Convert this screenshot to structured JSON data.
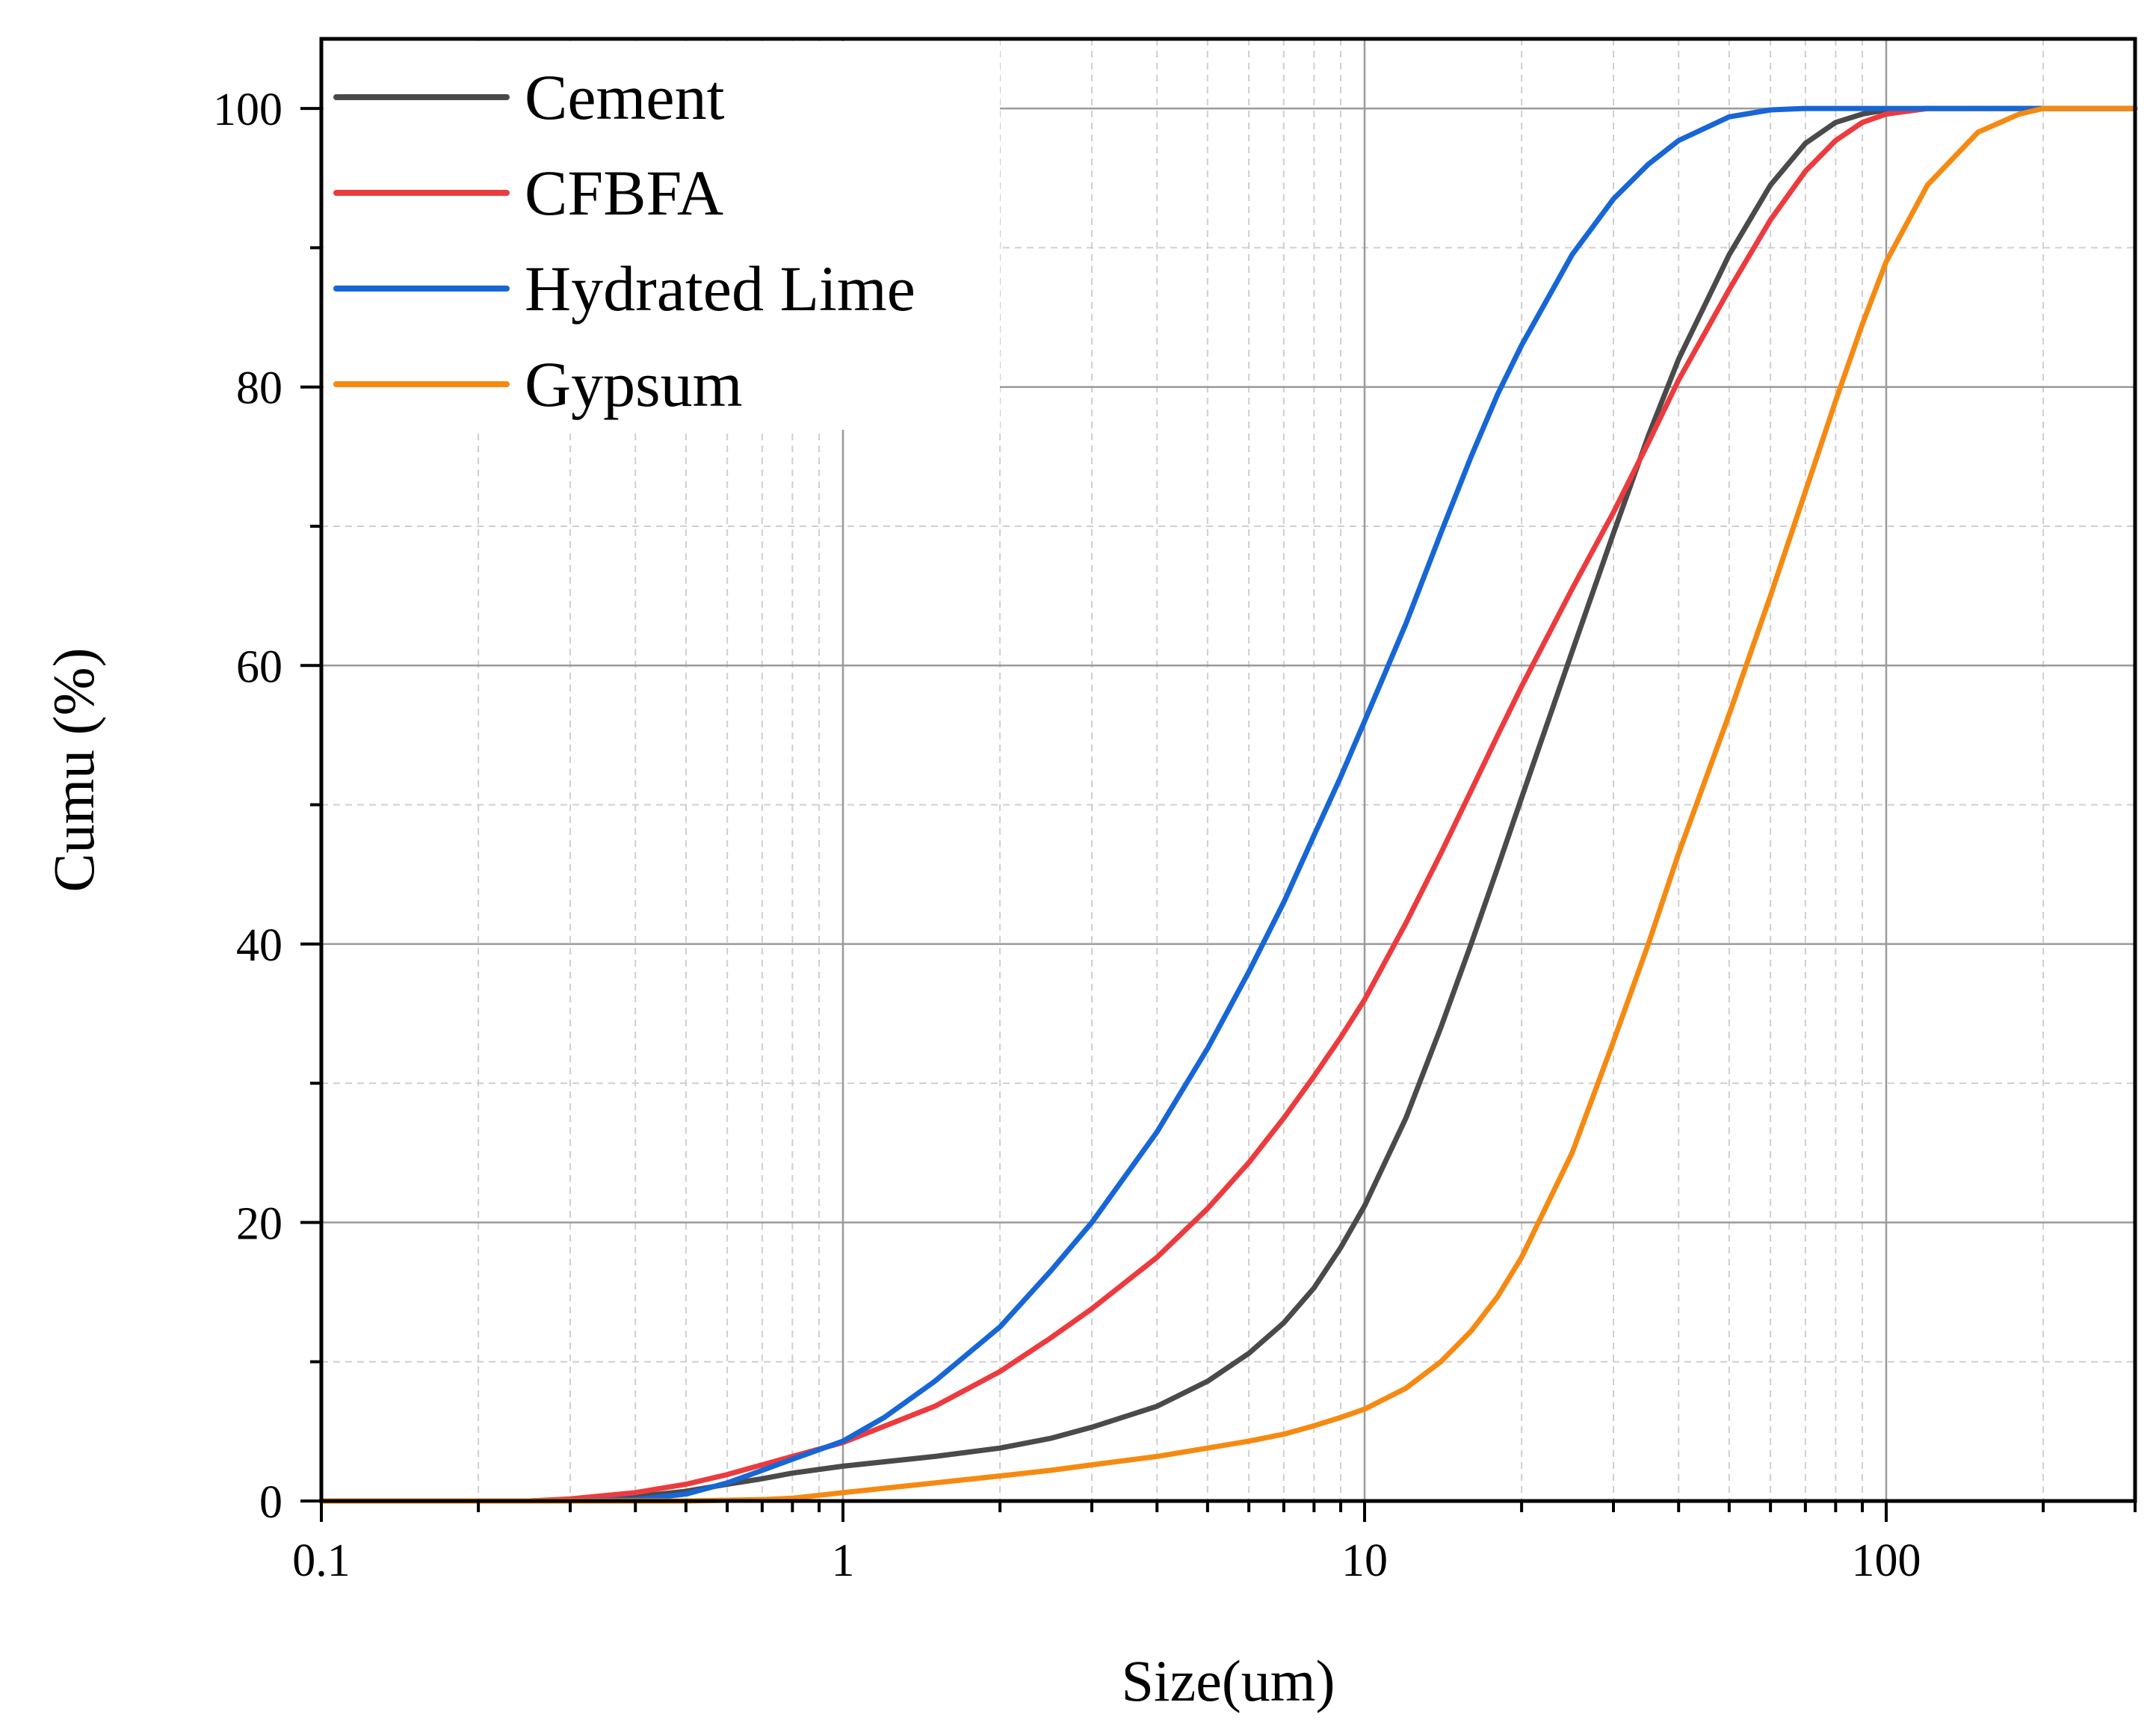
{
  "chart_data": {
    "type": "line",
    "title": "",
    "xlabel": "Size(um)",
    "ylabel": "Cumu (%)",
    "xscale": "log",
    "xlim": [
      0.1,
      300
    ],
    "ylim": [
      0,
      105
    ],
    "x_ticks": [
      {
        "value": 0.1,
        "label": "0.1"
      },
      {
        "value": 1,
        "label": "1"
      },
      {
        "value": 10,
        "label": "10"
      },
      {
        "value": 100,
        "label": "100"
      }
    ],
    "y_ticks": [
      {
        "value": 0,
        "label": "0"
      },
      {
        "value": 20,
        "label": "20"
      },
      {
        "value": 40,
        "label": "40"
      },
      {
        "value": 60,
        "label": "60"
      },
      {
        "value": 80,
        "label": "80"
      },
      {
        "value": 100,
        "label": "100"
      }
    ],
    "grid": true,
    "legend_position": "top-left",
    "series": [
      {
        "name": "Cement",
        "color": "#4a4a4a",
        "points": [
          [
            0.1,
            0
          ],
          [
            0.25,
            0
          ],
          [
            0.3,
            0.1
          ],
          [
            0.4,
            0.3
          ],
          [
            0.5,
            0.7
          ],
          [
            0.6,
            1.2
          ],
          [
            0.7,
            1.6
          ],
          [
            0.8,
            2.0
          ],
          [
            1,
            2.5
          ],
          [
            1.5,
            3.2
          ],
          [
            2,
            3.8
          ],
          [
            2.5,
            4.5
          ],
          [
            3,
            5.3
          ],
          [
            4,
            6.8
          ],
          [
            5,
            8.6
          ],
          [
            6,
            10.6
          ],
          [
            7,
            12.8
          ],
          [
            8,
            15.3
          ],
          [
            9,
            18.2
          ],
          [
            10,
            21.2
          ],
          [
            12,
            27.5
          ],
          [
            14,
            34
          ],
          [
            16,
            40
          ],
          [
            18,
            45.5
          ],
          [
            20,
            50.5
          ],
          [
            25,
            61
          ],
          [
            30,
            69.5
          ],
          [
            35,
            76.5
          ],
          [
            40,
            82
          ],
          [
            50,
            89.5
          ],
          [
            60,
            94.5
          ],
          [
            70,
            97.5
          ],
          [
            80,
            99
          ],
          [
            90,
            99.6
          ],
          [
            100,
            99.9
          ],
          [
            120,
            100
          ],
          [
            300,
            100
          ]
        ]
      },
      {
        "name": "CFBFA",
        "color": "#ec3b3f",
        "points": [
          [
            0.1,
            0
          ],
          [
            0.25,
            0
          ],
          [
            0.3,
            0.15
          ],
          [
            0.4,
            0.6
          ],
          [
            0.5,
            1.2
          ],
          [
            0.6,
            1.9
          ],
          [
            0.7,
            2.6
          ],
          [
            0.8,
            3.2
          ],
          [
            1,
            4.2
          ],
          [
            1.5,
            6.8
          ],
          [
            2,
            9.3
          ],
          [
            2.5,
            11.7
          ],
          [
            3,
            13.8
          ],
          [
            4,
            17.5
          ],
          [
            5,
            21.0
          ],
          [
            6,
            24.3
          ],
          [
            7,
            27.5
          ],
          [
            8,
            30.5
          ],
          [
            9,
            33.3
          ],
          [
            10,
            36
          ],
          [
            12,
            41.5
          ],
          [
            14,
            46.5
          ],
          [
            16,
            51
          ],
          [
            18,
            55
          ],
          [
            20,
            58.5
          ],
          [
            25,
            65.5
          ],
          [
            30,
            71
          ],
          [
            35,
            76
          ],
          [
            40,
            80.5
          ],
          [
            50,
            87
          ],
          [
            60,
            92
          ],
          [
            70,
            95.5
          ],
          [
            80,
            97.7
          ],
          [
            90,
            99
          ],
          [
            100,
            99.6
          ],
          [
            120,
            100
          ],
          [
            300,
            100
          ]
        ]
      },
      {
        "name": "Hydrated Lime",
        "color": "#1766d6",
        "points": [
          [
            0.1,
            0
          ],
          [
            0.3,
            0
          ],
          [
            0.4,
            0.1
          ],
          [
            0.5,
            0.5
          ],
          [
            0.6,
            1.3
          ],
          [
            0.7,
            2.2
          ],
          [
            0.8,
            3.0
          ],
          [
            1,
            4.3
          ],
          [
            1.2,
            6.0
          ],
          [
            1.5,
            8.6
          ],
          [
            2,
            12.5
          ],
          [
            2.5,
            16.5
          ],
          [
            3,
            20
          ],
          [
            4,
            26.5
          ],
          [
            5,
            32.5
          ],
          [
            6,
            38
          ],
          [
            7,
            43
          ],
          [
            8,
            47.8
          ],
          [
            9,
            52
          ],
          [
            10,
            56
          ],
          [
            12,
            63
          ],
          [
            14,
            69.5
          ],
          [
            16,
            75
          ],
          [
            18,
            79.5
          ],
          [
            20,
            83
          ],
          [
            25,
            89.5
          ],
          [
            30,
            93.5
          ],
          [
            35,
            96
          ],
          [
            40,
            97.7
          ],
          [
            50,
            99.4
          ],
          [
            60,
            99.9
          ],
          [
            70,
            100
          ],
          [
            300,
            100
          ]
        ]
      },
      {
        "name": "Gypsum",
        "color": "#f58a12",
        "points": [
          [
            0.1,
            0
          ],
          [
            0.5,
            0
          ],
          [
            0.7,
            0.1
          ],
          [
            0.8,
            0.2
          ],
          [
            1,
            0.6
          ],
          [
            1.5,
            1.3
          ],
          [
            2,
            1.8
          ],
          [
            2.5,
            2.2
          ],
          [
            3,
            2.6
          ],
          [
            4,
            3.2
          ],
          [
            5,
            3.8
          ],
          [
            6,
            4.3
          ],
          [
            7,
            4.8
          ],
          [
            8,
            5.4
          ],
          [
            9,
            6.0
          ],
          [
            10,
            6.6
          ],
          [
            12,
            8.1
          ],
          [
            14,
            10.0
          ],
          [
            16,
            12.2
          ],
          [
            18,
            14.7
          ],
          [
            20,
            17.5
          ],
          [
            25,
            25
          ],
          [
            30,
            33
          ],
          [
            35,
            40
          ],
          [
            40,
            46.5
          ],
          [
            50,
            56.5
          ],
          [
            60,
            65
          ],
          [
            70,
            72.5
          ],
          [
            80,
            79
          ],
          [
            90,
            84.5
          ],
          [
            100,
            89
          ],
          [
            120,
            94.5
          ],
          [
            150,
            98.3
          ],
          [
            180,
            99.6
          ],
          [
            200,
            100
          ],
          [
            300,
            100
          ]
        ]
      }
    ]
  }
}
